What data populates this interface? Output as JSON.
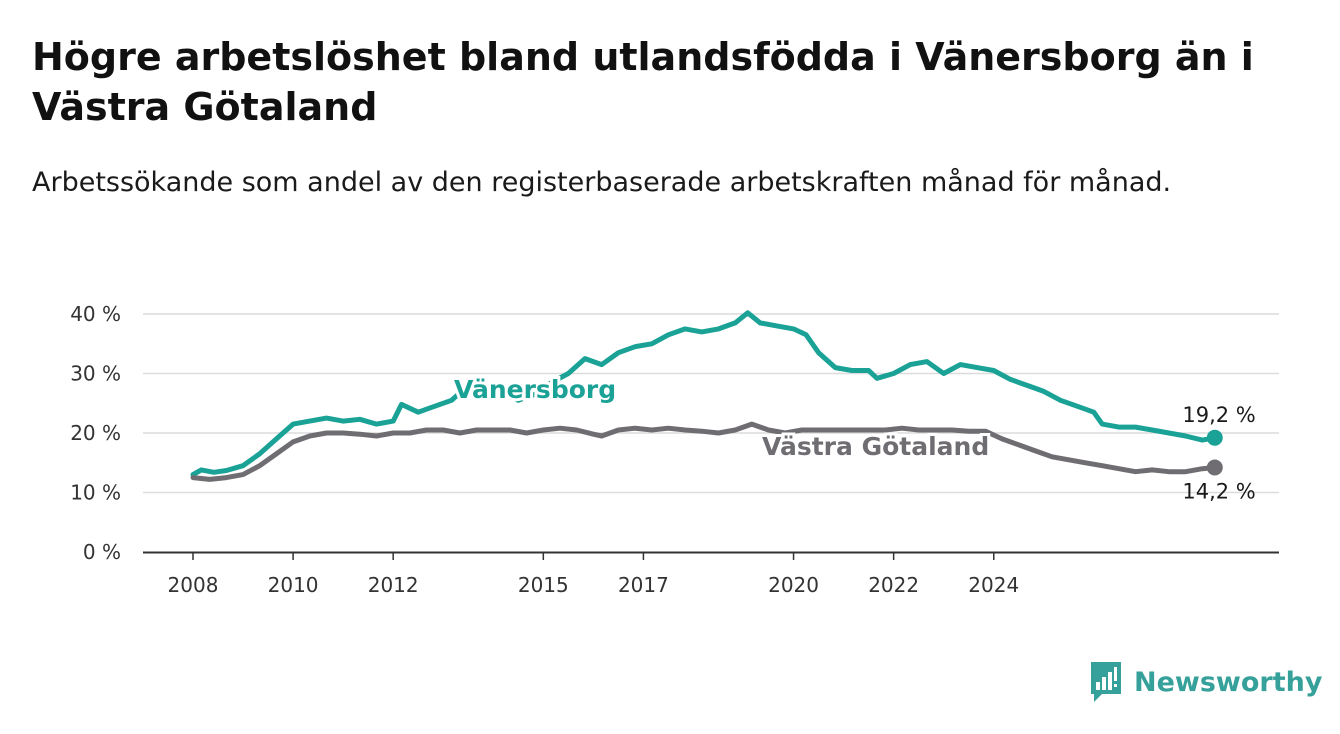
{
  "title": "Högre arbetslöshet bland utlandsfödda i Vänersborg än i Västra Götaland",
  "subtitle": "Arbetssökande som andel av den registerbaserade arbetskraften månad för månad.",
  "brand": {
    "name": "Newsworthy",
    "icon": "newsworthy-logo-icon",
    "color": "#36a09a"
  },
  "chart_data": {
    "type": "line",
    "title": "Högre arbetslöshet bland utlandsfödda i Vänersborg än i Västra Götaland",
    "subtitle": "Arbetssökande som andel av den registerbaserade arbetskraften månad för månad.",
    "xlabel": "",
    "ylabel": "",
    "x_ticks": [
      "2008",
      "2010",
      "2012",
      "2015",
      "2017",
      "2020",
      "2022",
      "2024"
    ],
    "y_ticks": [
      "0 %",
      "10 %",
      "20 %",
      "30 %",
      "40 %"
    ],
    "ylim": [
      0,
      40
    ],
    "grid": true,
    "legend": "inline",
    "series": [
      {
        "name": "Vänersborg",
        "color": "#1aa297",
        "end_label": "19,2 %",
        "points": [
          [
            "2008-01",
            13.0
          ],
          [
            "2008-03",
            13.8
          ],
          [
            "2008-06",
            13.4
          ],
          [
            "2008-09",
            13.7
          ],
          [
            "2009-01",
            14.5
          ],
          [
            "2009-05",
            16.5
          ],
          [
            "2009-09",
            19.0
          ],
          [
            "2010-01",
            21.5
          ],
          [
            "2010-05",
            22.0
          ],
          [
            "2010-09",
            22.5
          ],
          [
            "2011-01",
            22.0
          ],
          [
            "2011-05",
            22.3
          ],
          [
            "2011-09",
            21.5
          ],
          [
            "2012-01",
            22.0
          ],
          [
            "2012-03",
            24.8
          ],
          [
            "2012-07",
            23.5
          ],
          [
            "2012-11",
            24.5
          ],
          [
            "2013-03",
            25.5
          ],
          [
            "2013-07",
            28.0
          ],
          [
            "2013-11",
            27.5
          ],
          [
            "2014-03",
            27.0
          ],
          [
            "2014-07",
            25.5
          ],
          [
            "2014-11",
            26.5
          ],
          [
            "2015-03",
            28.5
          ],
          [
            "2015-07",
            30.0
          ],
          [
            "2015-11",
            32.5
          ],
          [
            "2016-03",
            31.5
          ],
          [
            "2016-07",
            33.5
          ],
          [
            "2016-11",
            34.5
          ],
          [
            "2017-03",
            35.0
          ],
          [
            "2017-07",
            36.5
          ],
          [
            "2017-11",
            37.5
          ],
          [
            "2018-03",
            37.0
          ],
          [
            "2018-07",
            37.5
          ],
          [
            "2018-11",
            38.5
          ],
          [
            "2019-02",
            40.2
          ],
          [
            "2019-05",
            38.5
          ],
          [
            "2019-09",
            38.0
          ],
          [
            "2020-01",
            37.5
          ],
          [
            "2020-04",
            36.5
          ],
          [
            "2020-07",
            33.5
          ],
          [
            "2020-11",
            31.0
          ],
          [
            "2021-03",
            30.5
          ],
          [
            "2021-07",
            30.5
          ],
          [
            "2021-09",
            29.2
          ],
          [
            "2022-01",
            30.0
          ],
          [
            "2022-05",
            31.5
          ],
          [
            "2022-09",
            32.0
          ],
          [
            "2023-01",
            30.0
          ],
          [
            "2023-05",
            31.5
          ],
          [
            "2023-09",
            31.0
          ],
          [
            "2024-01",
            30.5
          ],
          [
            "2024-05",
            29.0
          ],
          [
            "2024-09",
            28.0
          ],
          [
            "2025-01",
            27.0
          ],
          [
            "2025-05",
            25.5
          ],
          [
            "2025-09",
            24.5
          ],
          [
            "2026-01",
            23.5
          ],
          [
            "2026-03",
            21.5
          ],
          [
            "2026-07",
            21.0
          ],
          [
            "2026-11",
            21.0
          ],
          [
            "2027-03",
            20.5
          ],
          [
            "2027-07",
            20.0
          ],
          [
            "2027-11",
            19.5
          ],
          [
            "2028-03",
            18.8
          ],
          [
            "2028-06",
            19.2
          ]
        ]
      },
      {
        "name": "Västra Götaland",
        "color": "#6f6d72",
        "end_label": "14,2 %",
        "points": [
          [
            "2008-01",
            12.5
          ],
          [
            "2008-05",
            12.2
          ],
          [
            "2008-09",
            12.5
          ],
          [
            "2009-01",
            13.0
          ],
          [
            "2009-05",
            14.5
          ],
          [
            "2009-09",
            16.5
          ],
          [
            "2010-01",
            18.5
          ],
          [
            "2010-05",
            19.5
          ],
          [
            "2010-09",
            20.0
          ],
          [
            "2011-01",
            20.0
          ],
          [
            "2011-05",
            19.8
          ],
          [
            "2011-09",
            19.5
          ],
          [
            "2012-01",
            20.0
          ],
          [
            "2012-05",
            20.0
          ],
          [
            "2012-09",
            20.5
          ],
          [
            "2013-01",
            20.5
          ],
          [
            "2013-05",
            20.0
          ],
          [
            "2013-09",
            20.5
          ],
          [
            "2014-01",
            20.5
          ],
          [
            "2014-05",
            20.5
          ],
          [
            "2014-09",
            20.0
          ],
          [
            "2015-01",
            20.5
          ],
          [
            "2015-05",
            20.8
          ],
          [
            "2015-09",
            20.5
          ],
          [
            "2016-01",
            19.8
          ],
          [
            "2016-03",
            19.5
          ],
          [
            "2016-07",
            20.5
          ],
          [
            "2016-11",
            20.8
          ],
          [
            "2017-03",
            20.5
          ],
          [
            "2017-07",
            20.8
          ],
          [
            "2017-11",
            20.5
          ],
          [
            "2018-03",
            20.3
          ],
          [
            "2018-07",
            20.0
          ],
          [
            "2018-11",
            20.5
          ],
          [
            "2019-03",
            21.5
          ],
          [
            "2019-07",
            20.5
          ],
          [
            "2019-11",
            20.0
          ],
          [
            "2020-03",
            20.5
          ],
          [
            "2020-07",
            20.5
          ],
          [
            "2020-11",
            20.5
          ],
          [
            "2021-03",
            20.5
          ],
          [
            "2021-07",
            20.5
          ],
          [
            "2021-11",
            20.5
          ],
          [
            "2022-03",
            20.8
          ],
          [
            "2022-07",
            20.5
          ],
          [
            "2022-11",
            20.5
          ],
          [
            "2023-03",
            20.5
          ],
          [
            "2023-07",
            20.3
          ],
          [
            "2023-11",
            20.3
          ],
          [
            "2024-03",
            19.0
          ],
          [
            "2024-07",
            18.0
          ],
          [
            "2024-11",
            17.0
          ],
          [
            "2025-03",
            16.0
          ],
          [
            "2025-07",
            15.5
          ],
          [
            "2025-11",
            15.0
          ],
          [
            "2026-03",
            14.5
          ],
          [
            "2026-07",
            14.0
          ],
          [
            "2026-11",
            13.5
          ],
          [
            "2027-03",
            13.8
          ],
          [
            "2027-07",
            13.5
          ],
          [
            "2027-11",
            13.5
          ],
          [
            "2028-03",
            14.0
          ],
          [
            "2028-06",
            14.2
          ]
        ]
      }
    ]
  }
}
